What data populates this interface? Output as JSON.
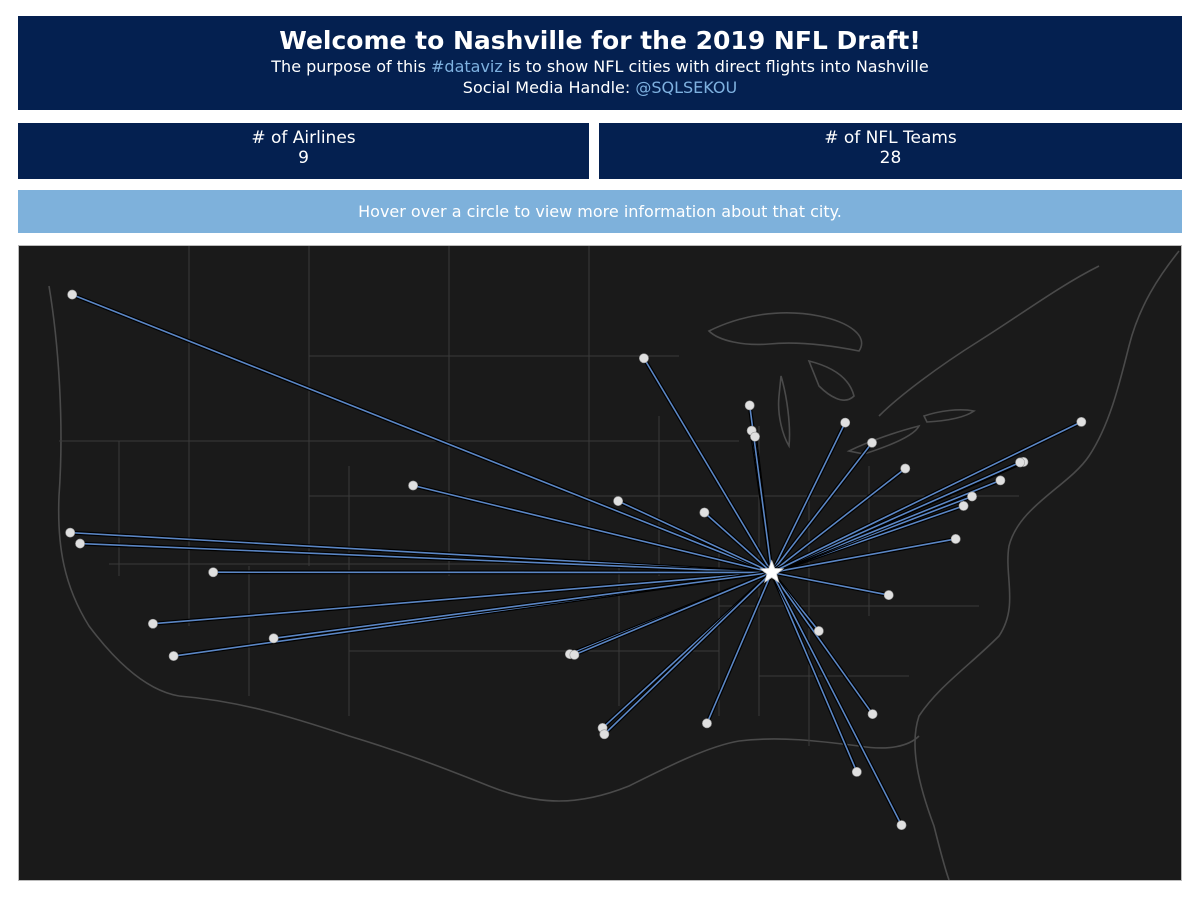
{
  "header": {
    "title": "Welcome to Nashville for the 2019 NFL Draft!",
    "subtitle_pre": "The purpose of this ",
    "subtitle_hashtag": "#dataviz",
    "subtitle_post": " is to show NFL cities with direct flights into Nashville",
    "handle_label": "Social Media Handle: ",
    "handle": "@SQLSEKOU"
  },
  "kpis": {
    "airlines_label": "# of Airlines",
    "airlines_value": "9",
    "teams_label": "# of NFL Teams",
    "teams_value": "28"
  },
  "hint": "Hover over a circle to view more information about that city.",
  "colors": {
    "header_bg": "#042050",
    "accent": "#7eb1e0",
    "hint_bg": "#7eb1db",
    "map_bg": "#1a1a1a",
    "route_line": "#5b86c4",
    "city_dot": "#e0e0e0"
  },
  "map": {
    "hub": {
      "name": "Nashville",
      "lon": -86.78,
      "lat": 36.16,
      "icon": "star-icon"
    },
    "cities": [
      {
        "lon": -122.3,
        "lat": 47.6
      },
      {
        "lon": -122.4,
        "lat": 37.8
      },
      {
        "lon": -121.9,
        "lat": 37.35
      },
      {
        "lon": -118.2,
        "lat": 34.05
      },
      {
        "lon": -117.15,
        "lat": 32.72
      },
      {
        "lon": -115.14,
        "lat": 36.17
      },
      {
        "lon": -112.07,
        "lat": 33.45
      },
      {
        "lon": -104.99,
        "lat": 39.74
      },
      {
        "lon": -94.58,
        "lat": 39.1
      },
      {
        "lon": -93.27,
        "lat": 44.98
      },
      {
        "lon": -90.2,
        "lat": 38.63
      },
      {
        "lon": -97.03,
        "lat": 32.8
      },
      {
        "lon": -96.8,
        "lat": 32.77
      },
      {
        "lon": -95.37,
        "lat": 29.76
      },
      {
        "lon": -95.28,
        "lat": 29.5
      },
      {
        "lon": -90.07,
        "lat": 29.95
      },
      {
        "lon": -87.8,
        "lat": 42.0
      },
      {
        "lon": -87.63,
        "lat": 41.75
      },
      {
        "lon": -87.9,
        "lat": 43.04
      },
      {
        "lon": -83.05,
        "lat": 42.33
      },
      {
        "lon": -81.69,
        "lat": 41.5
      },
      {
        "lon": -80.0,
        "lat": 40.44
      },
      {
        "lon": -84.39,
        "lat": 33.75
      },
      {
        "lon": -80.84,
        "lat": 35.23
      },
      {
        "lon": -81.66,
        "lat": 30.33
      },
      {
        "lon": -82.46,
        "lat": 27.95
      },
      {
        "lon": -80.19,
        "lat": 25.76
      },
      {
        "lon": -77.04,
        "lat": 38.9
      },
      {
        "lon": -76.61,
        "lat": 39.29
      },
      {
        "lon": -77.44,
        "lat": 37.54
      },
      {
        "lon": -75.17,
        "lat": 39.95
      },
      {
        "lon": -74.0,
        "lat": 40.71
      },
      {
        "lon": -74.17,
        "lat": 40.69
      },
      {
        "lon": -71.06,
        "lat": 42.36
      }
    ]
  }
}
